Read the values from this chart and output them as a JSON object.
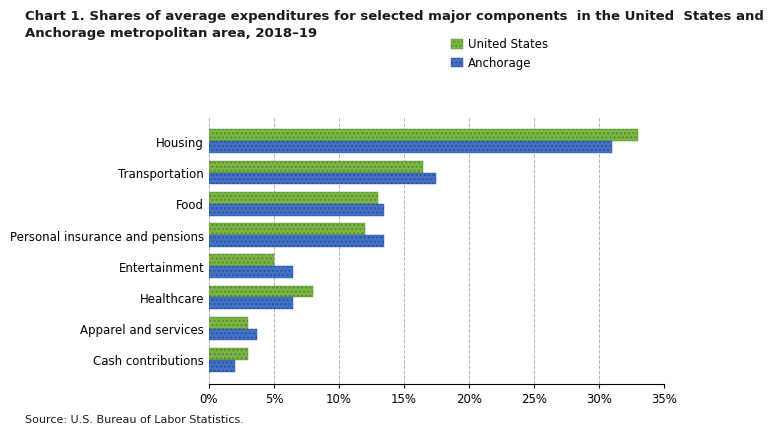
{
  "title_line1": "Chart 1. Shares of average expenditures for selected major components  in the United  States and",
  "title_line2": "Anchorage metropolitan area, 2018–19",
  "categories": [
    "Cash contributions",
    "Apparel and services",
    "Healthcare",
    "Entertainment",
    "Personal insurance and pensions",
    "Food",
    "Transportation",
    "Housing"
  ],
  "us_values": [
    3.0,
    3.0,
    8.0,
    5.0,
    12.0,
    13.0,
    16.5,
    33.0
  ],
  "anchorage_values": [
    2.0,
    3.7,
    6.5,
    6.5,
    13.5,
    13.5,
    17.5,
    31.0
  ],
  "us_color": "#7AB648",
  "anchorage_color": "#4472C4",
  "us_edge_color": "#5a8a2a",
  "anc_edge_color": "#2a52a0",
  "legend_labels": [
    "United States",
    "Anchorage"
  ],
  "xlim": [
    0,
    35
  ],
  "xtick_values": [
    0,
    5,
    10,
    15,
    20,
    25,
    30,
    35
  ],
  "xtick_labels": [
    "0%",
    "5%",
    "10%",
    "15%",
    "20%",
    "25%",
    "30%",
    "35%"
  ],
  "source": "Source: U.S. Bureau of Labor Statistics.",
  "bar_height": 0.38,
  "title_fontsize": 9.5,
  "axis_fontsize": 8.5,
  "legend_fontsize": 8.5,
  "source_fontsize": 8.0
}
